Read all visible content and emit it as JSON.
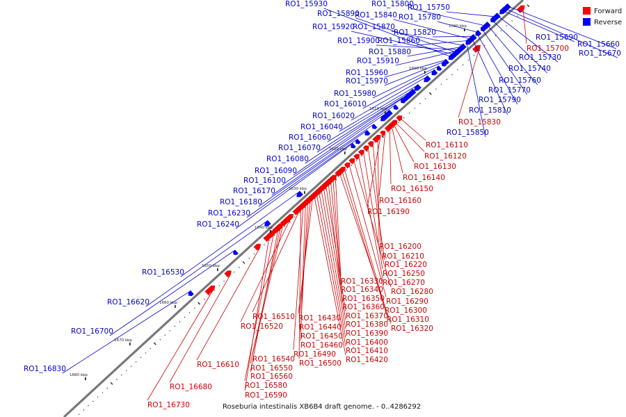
{
  "caption": "Roseburia intestinalis XB6B4 draft genome. - 0..4286292",
  "colors": {
    "forward": "#ff0000",
    "reverse": "#0000ff",
    "backbone": "#777777",
    "text_forward": "#cc0000",
    "text_reverse": "#0000cc"
  },
  "legend": [
    {
      "key": "forward",
      "label": "Forward",
      "color": "#ff0000"
    },
    {
      "key": "reverse",
      "label": "Reverse",
      "color": "#0000ff"
    }
  ],
  "kbp_marks": [
    "1590 kbp",
    "1600 kbp",
    "1610 kbp",
    "1620 kbp",
    "1630 kbp",
    "1640 kbp",
    "1650 kbp",
    "1660 kbp",
    "1670 kbp",
    "1680 kbp"
  ],
  "genes": [
    {
      "name": "RO1_15930",
      "strand": "reverse"
    },
    {
      "name": "RO1_15800",
      "strand": "reverse"
    },
    {
      "name": "RO1_15890",
      "strand": "reverse"
    },
    {
      "name": "RO1_15840",
      "strand": "reverse"
    },
    {
      "name": "RO1_15750",
      "strand": "reverse"
    },
    {
      "name": "RO1_15780",
      "strand": "reverse"
    },
    {
      "name": "RO1_15920",
      "strand": "reverse"
    },
    {
      "name": "RO1_15870",
      "strand": "reverse"
    },
    {
      "name": "RO1_15820",
      "strand": "reverse"
    },
    {
      "name": "RO1_15900",
      "strand": "reverse"
    },
    {
      "name": "RO1_15860",
      "strand": "reverse"
    },
    {
      "name": "RO1_15880",
      "strand": "reverse"
    },
    {
      "name": "RO1_15910",
      "strand": "reverse"
    },
    {
      "name": "RO1_15960",
      "strand": "reverse"
    },
    {
      "name": "RO1_15970",
      "strand": "reverse"
    },
    {
      "name": "RO1_15980",
      "strand": "reverse"
    },
    {
      "name": "RO1_16010",
      "strand": "reverse"
    },
    {
      "name": "RO1_16020",
      "strand": "reverse"
    },
    {
      "name": "RO1_16040",
      "strand": "reverse"
    },
    {
      "name": "RO1_16060",
      "strand": "reverse"
    },
    {
      "name": "RO1_16070",
      "strand": "reverse"
    },
    {
      "name": "RO1_16080",
      "strand": "reverse"
    },
    {
      "name": "RO1_16090",
      "strand": "reverse"
    },
    {
      "name": "RO1_16100",
      "strand": "reverse"
    },
    {
      "name": "RO1_16170",
      "strand": "reverse"
    },
    {
      "name": "RO1_16180",
      "strand": "reverse"
    },
    {
      "name": "RO1_16230",
      "strand": "reverse"
    },
    {
      "name": "RO1_16240",
      "strand": "reverse"
    },
    {
      "name": "RO1_16530",
      "strand": "reverse"
    },
    {
      "name": "RO1_16620",
      "strand": "reverse"
    },
    {
      "name": "RO1_16700",
      "strand": "reverse"
    },
    {
      "name": "RO1_16830",
      "strand": "reverse"
    },
    {
      "name": "RO1_15690",
      "strand": "reverse"
    },
    {
      "name": "RO1_15660",
      "strand": "reverse"
    },
    {
      "name": "RO1_15670",
      "strand": "reverse"
    },
    {
      "name": "RO1_15700",
      "strand": "forward"
    },
    {
      "name": "RO1_15730",
      "strand": "reverse"
    },
    {
      "name": "RO1_15740",
      "strand": "reverse"
    },
    {
      "name": "RO1_15760",
      "strand": "reverse"
    },
    {
      "name": "RO1_15770",
      "strand": "reverse"
    },
    {
      "name": "RO1_15790",
      "strand": "reverse"
    },
    {
      "name": "RO1_15810",
      "strand": "reverse"
    },
    {
      "name": "RO1_15830",
      "strand": "forward"
    },
    {
      "name": "RO1_15850",
      "strand": "reverse"
    },
    {
      "name": "RO1_16110",
      "strand": "forward"
    },
    {
      "name": "RO1_16120",
      "strand": "forward"
    },
    {
      "name": "RO1_16130",
      "strand": "forward"
    },
    {
      "name": "RO1_16140",
      "strand": "forward"
    },
    {
      "name": "RO1_16150",
      "strand": "forward"
    },
    {
      "name": "RO1_16160",
      "strand": "forward"
    },
    {
      "name": "RO1_16190",
      "strand": "forward"
    },
    {
      "name": "RO1_16200",
      "strand": "forward"
    },
    {
      "name": "RO1_16210",
      "strand": "forward"
    },
    {
      "name": "RO1_16220",
      "strand": "forward"
    },
    {
      "name": "RO1_16250",
      "strand": "forward"
    },
    {
      "name": "RO1_16270",
      "strand": "forward"
    },
    {
      "name": "RO1_16280",
      "strand": "forward"
    },
    {
      "name": "RO1_16290",
      "strand": "forward"
    },
    {
      "name": "RO1_16300",
      "strand": "forward"
    },
    {
      "name": "RO1_16310",
      "strand": "forward"
    },
    {
      "name": "RO1_16320",
      "strand": "forward"
    },
    {
      "name": "RO1_16330",
      "strand": "forward"
    },
    {
      "name": "RO1_16340",
      "strand": "forward"
    },
    {
      "name": "RO1_16350",
      "strand": "forward"
    },
    {
      "name": "RO1_16360",
      "strand": "forward"
    },
    {
      "name": "RO1_16370",
      "strand": "forward"
    },
    {
      "name": "RO1_16380",
      "strand": "forward"
    },
    {
      "name": "RO1_16390",
      "strand": "forward"
    },
    {
      "name": "RO1_16400",
      "strand": "forward"
    },
    {
      "name": "RO1_16410",
      "strand": "forward"
    },
    {
      "name": "RO1_16420",
      "strand": "forward"
    },
    {
      "name": "RO1_16430",
      "strand": "forward"
    },
    {
      "name": "RO1_16440",
      "strand": "forward"
    },
    {
      "name": "RO1_16450",
      "strand": "forward"
    },
    {
      "name": "RO1_16460",
      "strand": "forward"
    },
    {
      "name": "RO1_16490",
      "strand": "forward"
    },
    {
      "name": "RO1_16500",
      "strand": "forward"
    },
    {
      "name": "RO1_16510",
      "strand": "forward"
    },
    {
      "name": "RO1_16520",
      "strand": "forward"
    },
    {
      "name": "RO1_16540",
      "strand": "forward"
    },
    {
      "name": "RO1_16550",
      "strand": "forward"
    },
    {
      "name": "RO1_16560",
      "strand": "forward"
    },
    {
      "name": "RO1_16580",
      "strand": "forward"
    },
    {
      "name": "RO1_16590",
      "strand": "forward"
    },
    {
      "name": "RO1_16610",
      "strand": "forward"
    },
    {
      "name": "RO1_16680",
      "strand": "forward"
    },
    {
      "name": "RO1_16730",
      "strand": "forward"
    }
  ]
}
